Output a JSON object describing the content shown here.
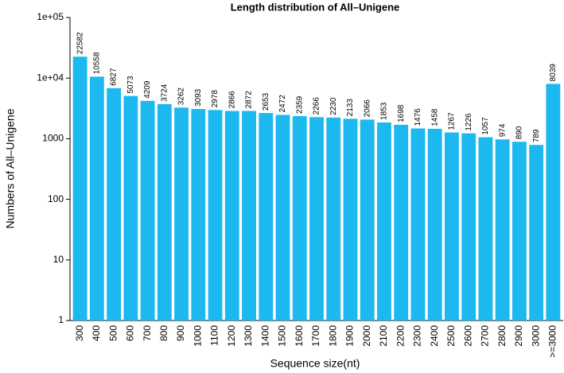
{
  "chart_data": {
    "type": "bar",
    "title": "Length distribution of All–Unigene",
    "x_label": "Sequence size(nt)",
    "y_label": "Numbers of All–Unigene",
    "categories": [
      "300",
      "400",
      "500",
      "600",
      "700",
      "800",
      "900",
      "1000",
      "1100",
      "1200",
      "1300",
      "1400",
      "1500",
      "1600",
      "1700",
      "1800",
      "1900",
      "2000",
      "2100",
      "2200",
      "2300",
      "2400",
      "2500",
      "2600",
      "2700",
      "2800",
      "2900",
      "3000",
      ">=3000"
    ],
    "values": [
      22582,
      10558,
      6827,
      5073,
      4209,
      3724,
      3262,
      3093,
      2978,
      2866,
      2872,
      2653,
      2472,
      2359,
      2266,
      2230,
      2133,
      2066,
      1853,
      1698,
      1476,
      1458,
      1267,
      1226,
      1057,
      974,
      890,
      789,
      8039
    ],
    "color": "#1cb8f0",
    "log": true,
    "ylim": [
      1,
      100000
    ],
    "yticks": [
      1,
      10,
      100,
      1000,
      {
        "value": 10000,
        "label": "1e+04"
      },
      {
        "value": 100000,
        "label": "1e+05"
      }
    ]
  }
}
